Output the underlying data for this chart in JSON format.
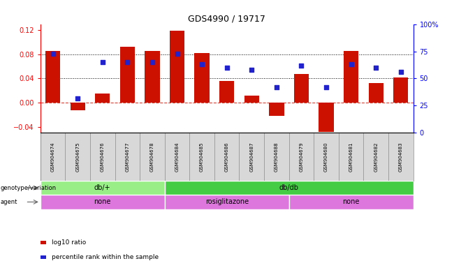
{
  "title": "GDS4990 / 19717",
  "samples": [
    "GSM904674",
    "GSM904675",
    "GSM904676",
    "GSM904677",
    "GSM904678",
    "GSM904684",
    "GSM904685",
    "GSM904686",
    "GSM904687",
    "GSM904688",
    "GSM904679",
    "GSM904680",
    "GSM904681",
    "GSM904682",
    "GSM904683"
  ],
  "log10_ratio": [
    0.086,
    -0.013,
    0.015,
    0.092,
    0.086,
    0.119,
    0.082,
    0.036,
    0.012,
    -0.022,
    0.047,
    -0.048,
    0.086,
    0.033,
    0.042
  ],
  "percentile_rank_pct": [
    73,
    32,
    65,
    65,
    65,
    73,
    63,
    60,
    58,
    42,
    62,
    42,
    63,
    60,
    56
  ],
  "ylim_left": [
    -0.05,
    0.13
  ],
  "ylim_right": [
    0,
    100
  ],
  "yticks_left": [
    -0.04,
    0,
    0.04,
    0.08,
    0.12
  ],
  "yticks_right": [
    0,
    25,
    50,
    75,
    100
  ],
  "hlines": [
    0.04,
    0.08
  ],
  "bar_color": "#cc1100",
  "dot_color": "#2222cc",
  "plot_bg": "#ffffff",
  "xtick_bg": "#d8d8d8",
  "genotype_groups": [
    {
      "label": "db/+",
      "start": 0,
      "end": 5,
      "color": "#99ee88"
    },
    {
      "label": "db/db",
      "start": 5,
      "end": 15,
      "color": "#44cc44"
    }
  ],
  "agent_groups": [
    {
      "label": "none",
      "start": 0,
      "end": 5,
      "color": "#dd77dd"
    },
    {
      "label": "rosiglitazone",
      "start": 5,
      "end": 10,
      "color": "#dd77dd"
    },
    {
      "label": "none",
      "start": 10,
      "end": 15,
      "color": "#dd77dd"
    }
  ],
  "legend_items": [
    {
      "label": "log10 ratio",
      "color": "#cc1100"
    },
    {
      "label": "percentile rank within the sample",
      "color": "#2222cc"
    }
  ]
}
